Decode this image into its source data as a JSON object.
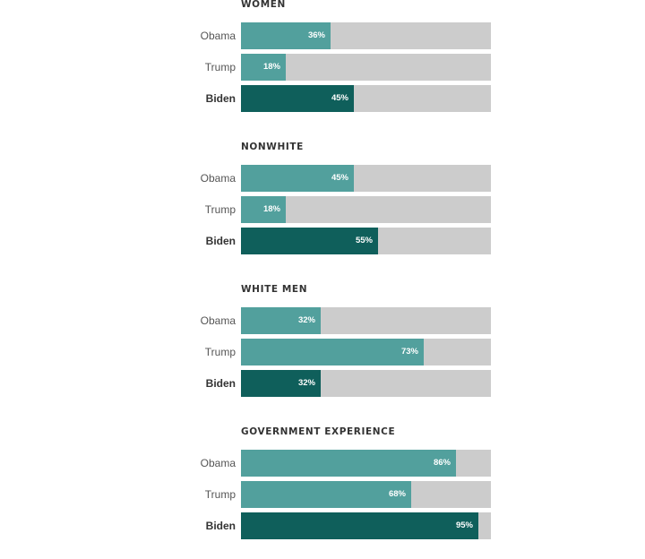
{
  "colors": {
    "obama": "#52a09d",
    "trump": "#52a09d",
    "biden": "#0f5f5b",
    "track": "#cccccc"
  },
  "chart_data": {
    "type": "bar",
    "orientation": "horizontal",
    "xlim": [
      0,
      100
    ],
    "groups": [
      {
        "title": "WOMEN",
        "bars": [
          {
            "name": "Obama",
            "value": 36,
            "label": "36%",
            "key": "obama"
          },
          {
            "name": "Trump",
            "value": 18,
            "label": "18%",
            "key": "trump"
          },
          {
            "name": "Biden",
            "value": 45,
            "label": "45%",
            "key": "biden"
          }
        ]
      },
      {
        "title": "NONWHITE",
        "bars": [
          {
            "name": "Obama",
            "value": 45,
            "label": "45%",
            "key": "obama"
          },
          {
            "name": "Trump",
            "value": 18,
            "label": "18%",
            "key": "trump"
          },
          {
            "name": "Biden",
            "value": 55,
            "label": "55%",
            "key": "biden"
          }
        ]
      },
      {
        "title": "WHITE MEN",
        "bars": [
          {
            "name": "Obama",
            "value": 32,
            "label": "32%",
            "key": "obama"
          },
          {
            "name": "Trump",
            "value": 73,
            "label": "73%",
            "key": "trump"
          },
          {
            "name": "Biden",
            "value": 32,
            "label": "32%",
            "key": "biden"
          }
        ]
      },
      {
        "title": "GOVERNMENT EXPERIENCE",
        "bars": [
          {
            "name": "Obama",
            "value": 86,
            "label": "86%",
            "key": "obama"
          },
          {
            "name": "Trump",
            "value": 68,
            "label": "68%",
            "key": "trump"
          },
          {
            "name": "Biden",
            "value": 95,
            "label": "95%",
            "key": "biden"
          }
        ]
      }
    ]
  }
}
